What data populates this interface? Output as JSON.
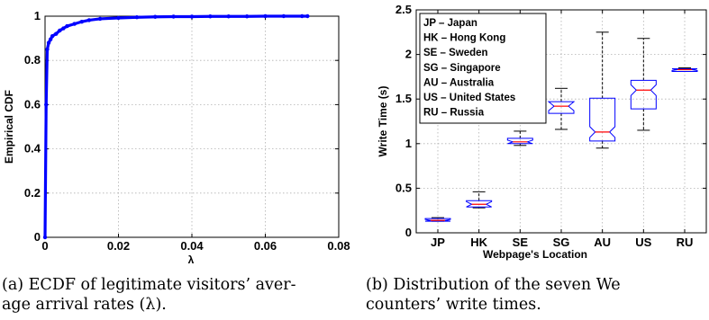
{
  "chart_data": [
    {
      "type": "line",
      "title": "",
      "xlabel": "λ",
      "ylabel": "Empirical CDF",
      "xlim": [
        0,
        0.08
      ],
      "ylim": [
        0,
        1
      ],
      "xticks": [
        "0",
        "0.02",
        "0.04",
        "0.06",
        "0.08"
      ],
      "yticks": [
        "0",
        "0.2",
        "0.4",
        "0.6",
        "0.8",
        "1"
      ],
      "grid": true,
      "series": [
        {
          "color": "#0000ff",
          "marker": "dot",
          "x": [
            0,
            0.0003,
            0.0006,
            0.001,
            0.0015,
            0.002,
            0.003,
            0.004,
            0.005,
            0.006,
            0.008,
            0.01,
            0.012,
            0.015,
            0.02,
            0.025,
            0.03,
            0.035,
            0.04,
            0.045,
            0.05,
            0.055,
            0.06,
            0.065,
            0.07,
            0.0715
          ],
          "y": [
            0,
            0.6,
            0.85,
            0.88,
            0.895,
            0.91,
            0.92,
            0.935,
            0.945,
            0.955,
            0.965,
            0.975,
            0.982,
            0.988,
            0.992,
            0.995,
            0.997,
            0.998,
            0.998,
            0.999,
            0.999,
            0.999,
            1.0,
            1.0,
            1.0,
            1.0
          ]
        }
      ],
      "caption": "(a) ECDF of legitimate visitors’ aver-\nage arrival rates (λ)."
    },
    {
      "type": "box",
      "title": "",
      "xlabel": "Webpage's Location",
      "ylabel": "Write Time (s)",
      "ylim": [
        0,
        2.5
      ],
      "yticks": [
        "0",
        "0.5",
        "1",
        "1.5",
        "2",
        "2.5"
      ],
      "grid": true,
      "categories": [
        "JP",
        "HK",
        "SE",
        "SG",
        "AU",
        "US",
        "RU"
      ],
      "boxes": [
        {
          "min": 0.13,
          "q1": 0.13,
          "median": 0.14,
          "q3": 0.16,
          "max": 0.17
        },
        {
          "min": 0.28,
          "q1": 0.29,
          "median": 0.32,
          "q3": 0.36,
          "max": 0.46
        },
        {
          "min": 0.98,
          "q1": 1.0,
          "median": 1.02,
          "q3": 1.06,
          "max": 1.14
        },
        {
          "min": 1.16,
          "q1": 1.34,
          "median": 1.42,
          "q3": 1.47,
          "max": 1.62
        },
        {
          "min": 0.95,
          "q1": 1.03,
          "median": 1.13,
          "q3": 1.51,
          "max": 2.25
        },
        {
          "min": 1.15,
          "q1": 1.39,
          "median": 1.6,
          "q3": 1.71,
          "max": 2.18
        },
        {
          "min": 1.81,
          "q1": 1.81,
          "median": 1.83,
          "q3": 1.84,
          "max": 1.85
        }
      ],
      "legend": {
        "position": "top-left",
        "entries": [
          "JP – Japan",
          "HK – Hong Kong",
          "SE – Sweden",
          "SG – Singapore",
          "AU – Australia",
          "US – United States",
          "RU – Russia"
        ]
      },
      "caption": "(b) Distribution of the seven We\ncounters’ write times."
    }
  ],
  "captions": {
    "a_line1": "(a) ECDF of legitimate visitors’ aver-",
    "a_line2": "age arrival rates (λ).",
    "b_line1": "(b) Distribution of the seven We",
    "b_line2": "counters’ write times."
  }
}
